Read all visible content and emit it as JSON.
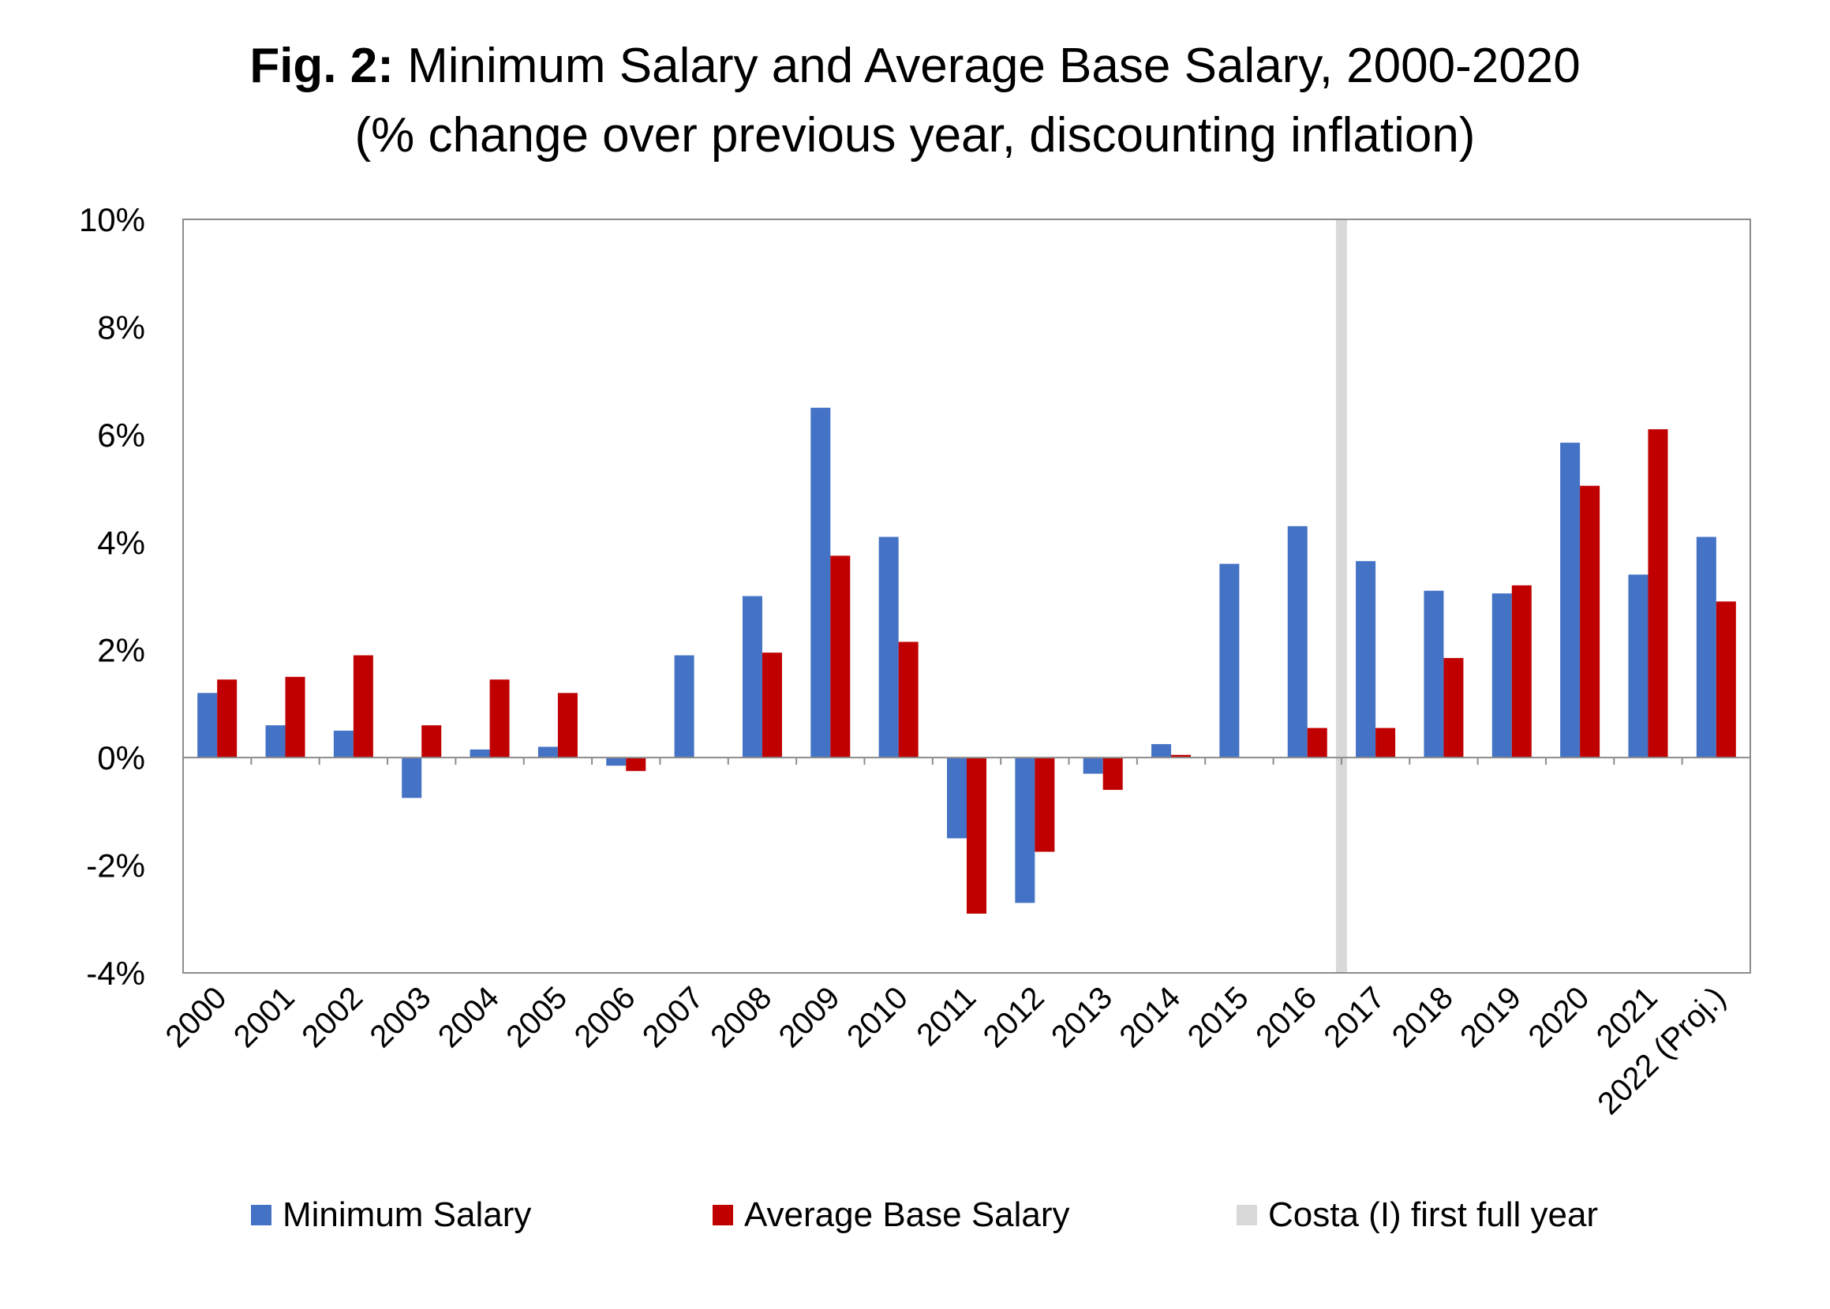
{
  "title": {
    "prefix": "Fig. 2:",
    "main": "Minimum Salary and Average Base Salary, 2000-2020",
    "subtitle": "(% change over previous year, discounting inflation)"
  },
  "chart_data": {
    "type": "bar",
    "categories": [
      "2000",
      "2001",
      "2002",
      "2003",
      "2004",
      "2005",
      "2006",
      "2007",
      "2008",
      "2009",
      "2010",
      "2011",
      "2012",
      "2013",
      "2014",
      "2015",
      "2016",
      "2017",
      "2018",
      "2019",
      "2020",
      "2021",
      "2022 (Proj.)"
    ],
    "series": [
      {
        "name": "Minimum Salary",
        "color": "#4472c4",
        "values": [
          1.2,
          0.6,
          0.5,
          -0.75,
          0.15,
          0.2,
          -0.15,
          1.9,
          3.0,
          6.5,
          4.1,
          -1.5,
          -2.7,
          -0.3,
          0.25,
          3.6,
          4.3,
          3.65,
          3.1,
          3.05,
          5.85,
          3.4,
          4.1
        ]
      },
      {
        "name": "Average Base Salary",
        "color": "#c00000",
        "values": [
          1.45,
          1.5,
          1.9,
          0.6,
          1.45,
          1.2,
          -0.25,
          0,
          1.95,
          3.75,
          2.15,
          -2.9,
          -1.75,
          -0.6,
          0.05,
          0,
          0.55,
          0.55,
          1.85,
          3.2,
          5.05,
          6.1,
          2.9
        ]
      }
    ],
    "highlight": {
      "name": "Costa (I) first full year",
      "category": "2016",
      "color": "#d9d9d9"
    },
    "yticks": [
      "10%",
      "8%",
      "6%",
      "4%",
      "2%",
      "0%",
      "-2%",
      "-4%"
    ],
    "ytick_values": [
      10,
      8,
      6,
      4,
      2,
      0,
      -2,
      -4
    ],
    "ylim": [
      -4,
      10
    ],
    "xlabel": "",
    "ylabel": "",
    "grid": false,
    "legend_position": "bottom"
  },
  "legend": {
    "min_salary": "Minimum Salary",
    "avg_salary": "Average Base Salary",
    "costa": "Costa (I) first full year"
  },
  "colors": {
    "min_salary": "#4472c4",
    "avg_salary": "#c00000",
    "costa": "#d9d9d9"
  }
}
